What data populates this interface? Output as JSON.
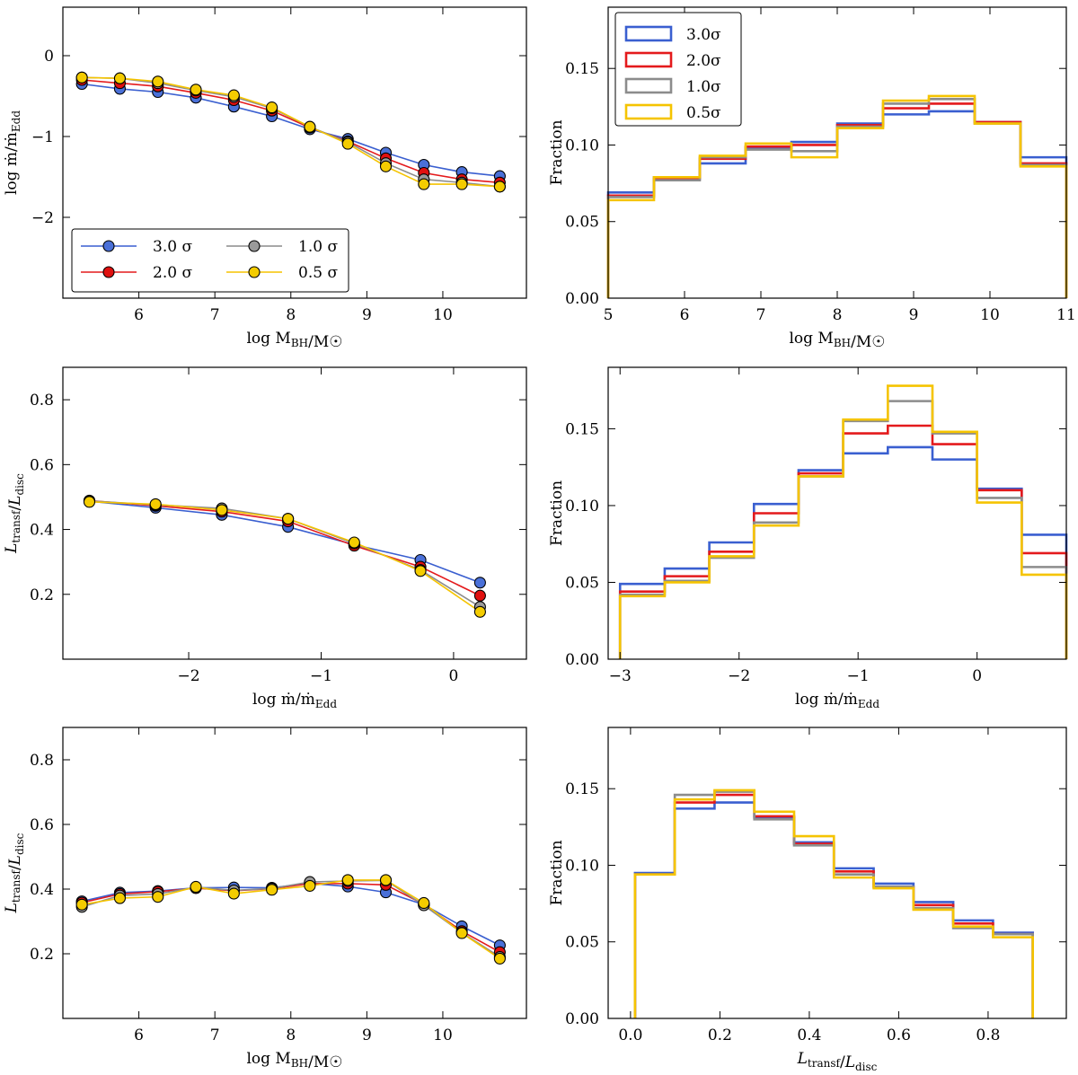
{
  "series_styles": [
    {
      "name": "3.0σ",
      "color": "#3a5fd0",
      "point_color": "#4a70d8"
    },
    {
      "name": "2.0σ",
      "color": "#e41a1c",
      "point_color": "#e0100f"
    },
    {
      "name": "1.0σ",
      "color": "#8c8c8c",
      "point_color": "#9a9a9a"
    },
    {
      "name": "0.5σ",
      "color": "#f5c400",
      "point_color": "#f4cc00"
    }
  ],
  "legend_labels": [
    "3.0 σ",
    "2.0 σ",
    "1.0 σ",
    "0.5 σ"
  ],
  "hist_legend_labels": [
    "3.0σ",
    "2.0σ",
    "1.0σ",
    "0.5σ"
  ],
  "chart_data": [
    {
      "id": "p1",
      "type": "line",
      "title": "",
      "xlabel": "log M_BH/M_☉",
      "ylabel": "log ṁ/ṁ_Edd",
      "xlim": [
        5.0,
        11.1
      ],
      "ylim": [
        -3.0,
        0.6
      ],
      "xticks": [
        6,
        7,
        8,
        9,
        10
      ],
      "yticks": [
        -2,
        -1,
        0
      ],
      "legend": "lower-left",
      "x": [
        5.25,
        5.75,
        6.25,
        6.75,
        7.25,
        7.75,
        8.25,
        8.75,
        9.25,
        9.75,
        10.25,
        10.75
      ],
      "series": [
        {
          "name": "3.0 σ",
          "values": [
            -0.35,
            -0.41,
            -0.45,
            -0.52,
            -0.63,
            -0.75,
            -0.91,
            -1.03,
            -1.2,
            -1.35,
            -1.44,
            -1.49
          ]
        },
        {
          "name": "2.0 σ",
          "values": [
            -0.3,
            -0.34,
            -0.38,
            -0.46,
            -0.55,
            -0.68,
            -0.89,
            -1.06,
            -1.27,
            -1.45,
            -1.53,
            -1.57
          ]
        },
        {
          "name": "1.0 σ",
          "values": [
            -0.27,
            -0.28,
            -0.34,
            -0.43,
            -0.51,
            -0.65,
            -0.88,
            -1.07,
            -1.33,
            -1.53,
            -1.57,
            -1.62
          ]
        },
        {
          "name": "0.5 σ",
          "values": [
            -0.27,
            -0.28,
            -0.32,
            -0.42,
            -0.49,
            -0.64,
            -0.88,
            -1.09,
            -1.37,
            -1.59,
            -1.59,
            -1.62
          ]
        }
      ]
    },
    {
      "id": "p2",
      "type": "histogram",
      "title": "",
      "xlabel": "log M_BH/M_☉",
      "ylabel": "Fraction",
      "xlim": [
        5.0,
        11.0
      ],
      "ylim": [
        0.0,
        0.19
      ],
      "xticks": [
        5,
        6,
        7,
        8,
        9,
        10,
        11
      ],
      "yticks": [
        0.0,
        0.05,
        0.1,
        0.15
      ],
      "legend": "top-left",
      "bin_edges": [
        5.0,
        5.6,
        6.2,
        6.8,
        7.4,
        8.0,
        8.6,
        9.2,
        9.8,
        10.4,
        11.0
      ],
      "series": [
        {
          "name": "3.0σ",
          "values": [
            0.069,
            0.079,
            0.088,
            0.098,
            0.102,
            0.114,
            0.12,
            0.122,
            0.115,
            0.092
          ]
        },
        {
          "name": "2.0σ",
          "values": [
            0.067,
            0.078,
            0.091,
            0.099,
            0.1,
            0.113,
            0.124,
            0.127,
            0.115,
            0.088
          ]
        },
        {
          "name": "1.0σ",
          "values": [
            0.066,
            0.077,
            0.092,
            0.097,
            0.096,
            0.112,
            0.127,
            0.13,
            0.114,
            0.087
          ]
        },
        {
          "name": "0.5σ",
          "values": [
            0.064,
            0.079,
            0.093,
            0.101,
            0.092,
            0.111,
            0.129,
            0.132,
            0.114,
            0.086
          ]
        }
      ]
    },
    {
      "id": "p3",
      "type": "line",
      "title": "",
      "xlabel": "log ṁ/ṁ_Edd",
      "ylabel": "L_transf/L_disc",
      "xlim": [
        -2.95,
        0.55
      ],
      "ylim": [
        0.0,
        0.9
      ],
      "xticks": [
        -2,
        -1,
        0
      ],
      "yticks": [
        0.2,
        0.4,
        0.6,
        0.8
      ],
      "legend": "none",
      "x": [
        -2.75,
        -2.25,
        -1.75,
        -1.25,
        -0.75,
        -0.25,
        0.2
      ],
      "series": [
        {
          "name": "3.0 σ",
          "values": [
            0.487,
            0.467,
            0.445,
            0.408,
            0.353,
            0.306,
            0.236
          ]
        },
        {
          "name": "2.0 σ",
          "values": [
            0.489,
            0.473,
            0.455,
            0.425,
            0.35,
            0.285,
            0.196
          ]
        },
        {
          "name": "1.0 σ",
          "values": [
            0.488,
            0.476,
            0.465,
            0.433,
            0.357,
            0.275,
            0.161
          ]
        },
        {
          "name": "0.5 σ",
          "values": [
            0.485,
            0.478,
            0.46,
            0.433,
            0.36,
            0.272,
            0.146
          ]
        }
      ]
    },
    {
      "id": "p4",
      "type": "histogram",
      "title": "",
      "xlabel": "log ṁ/ṁ_Edd",
      "ylabel": "Fraction",
      "xlim": [
        -3.1,
        0.75
      ],
      "ylim": [
        0.0,
        0.19
      ],
      "xticks": [
        -3,
        -2,
        -1,
        0
      ],
      "yticks": [
        0.0,
        0.05,
        0.1,
        0.15
      ],
      "legend": "none",
      "bin_edges": [
        -3.0,
        -2.625,
        -2.25,
        -1.875,
        -1.5,
        -1.125,
        -0.75,
        -0.375,
        0.0,
        0.375,
        0.75
      ],
      "series": [
        {
          "name": "3.0σ",
          "values": [
            0.049,
            0.059,
            0.076,
            0.101,
            0.123,
            0.134,
            0.138,
            0.13,
            0.111,
            0.081
          ]
        },
        {
          "name": "2.0σ",
          "values": [
            0.044,
            0.054,
            0.07,
            0.095,
            0.121,
            0.147,
            0.152,
            0.14,
            0.11,
            0.069
          ]
        },
        {
          "name": "1.0σ",
          "values": [
            0.042,
            0.051,
            0.066,
            0.089,
            0.119,
            0.155,
            0.168,
            0.147,
            0.105,
            0.06
          ]
        },
        {
          "name": "0.5σ",
          "values": [
            0.041,
            0.05,
            0.067,
            0.087,
            0.119,
            0.156,
            0.178,
            0.148,
            0.102,
            0.055
          ]
        }
      ]
    },
    {
      "id": "p5",
      "type": "line",
      "title": "",
      "xlabel": "log M_BH/M_☉",
      "ylabel": "L_transf/L_disc",
      "xlim": [
        5.0,
        11.1
      ],
      "ylim": [
        0.0,
        0.9
      ],
      "xticks": [
        6,
        7,
        8,
        9,
        10
      ],
      "yticks": [
        0.2,
        0.4,
        0.6,
        0.8
      ],
      "legend": "none",
      "x": [
        5.25,
        5.75,
        6.25,
        6.75,
        7.25,
        7.75,
        8.25,
        8.75,
        9.25,
        9.75,
        10.25,
        10.75
      ],
      "series": [
        {
          "name": "3.0 σ",
          "values": [
            0.362,
            0.389,
            0.394,
            0.404,
            0.405,
            0.404,
            0.418,
            0.408,
            0.39,
            0.352,
            0.285,
            0.226
          ]
        },
        {
          "name": "2.0 σ",
          "values": [
            0.358,
            0.385,
            0.392,
            0.403,
            0.395,
            0.401,
            0.417,
            0.417,
            0.413,
            0.353,
            0.27,
            0.205
          ]
        },
        {
          "name": "1.0 σ",
          "values": [
            0.345,
            0.38,
            0.385,
            0.406,
            0.396,
            0.402,
            0.422,
            0.425,
            0.427,
            0.35,
            0.265,
            0.19
          ]
        },
        {
          "name": "0.5 σ",
          "values": [
            0.352,
            0.372,
            0.376,
            0.407,
            0.386,
            0.398,
            0.41,
            0.428,
            0.428,
            0.357,
            0.264,
            0.185
          ]
        }
      ]
    },
    {
      "id": "p6",
      "type": "histogram",
      "title": "",
      "xlabel": "L_transf/L_disc",
      "ylabel": "Fraction",
      "xlim": [
        -0.05,
        0.975
      ],
      "ylim": [
        0.0,
        0.19
      ],
      "xticks": [
        0.0,
        0.2,
        0.4,
        0.6,
        0.8
      ],
      "yticks": [
        0.0,
        0.05,
        0.1,
        0.15
      ],
      "legend": "none",
      "bin_edges": [
        0.01,
        0.099,
        0.188,
        0.277,
        0.366,
        0.455,
        0.544,
        0.633,
        0.722,
        0.811,
        0.9
      ],
      "series": [
        {
          "name": "3.0σ",
          "values": [
            0.095,
            0.137,
            0.141,
            0.131,
            0.115,
            0.098,
            0.088,
            0.076,
            0.064,
            0.056
          ]
        },
        {
          "name": "2.0σ",
          "values": [
            0.094,
            0.141,
            0.146,
            0.132,
            0.114,
            0.096,
            0.086,
            0.074,
            0.062,
            0.055
          ]
        },
        {
          "name": "1.0σ",
          "values": [
            0.094,
            0.146,
            0.148,
            0.13,
            0.113,
            0.094,
            0.086,
            0.072,
            0.059,
            0.055
          ]
        },
        {
          "name": "0.5σ",
          "values": [
            0.094,
            0.143,
            0.149,
            0.135,
            0.119,
            0.092,
            0.085,
            0.071,
            0.06,
            0.053
          ]
        }
      ]
    }
  ]
}
